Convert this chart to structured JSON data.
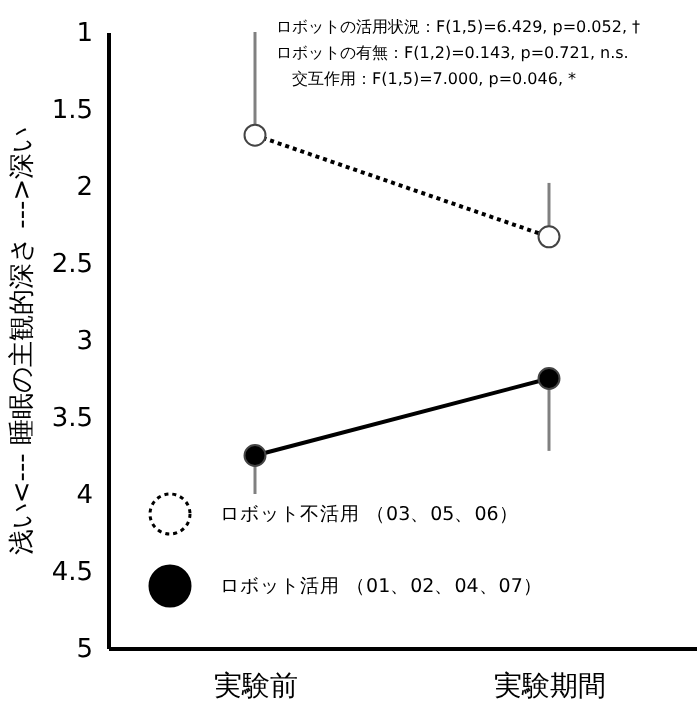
{
  "chart_data": {
    "type": "line",
    "ylabel": "浅い<--- 睡眠の主観的深さ --->深い",
    "categories": [
      "実験前",
      "実験期間"
    ],
    "series": [
      {
        "name": "ロボット不活用 （03、05、06）",
        "color": "#000000",
        "values": [
          1.67,
          2.33
        ],
        "errors": [
          [
            1.0,
            1.67
          ],
          [
            1.98,
            2.33
          ]
        ],
        "line_style": "dotted",
        "marker": "circle"
      },
      {
        "name": "ロボット活用 （01、02、04、07）",
        "color": "#000000",
        "values": [
          3.75,
          3.25
        ],
        "errors": [
          [
            3.75,
            4.0
          ],
          [
            3.25,
            3.72
          ]
        ],
        "line_style": "solid",
        "marker": "circle"
      }
    ],
    "ylim": [
      5,
      1
    ],
    "yticks": [
      1,
      1.5,
      2,
      2.5,
      3,
      3.5,
      4,
      4.5,
      5
    ],
    "annotations": [
      "ロボットの活用状況：F(1,5)=6.429, p=0.052, †",
      "ロボットの有無：F(1,2)=0.143, p=0.721, n.s.",
      "交互作用：F(1,5)=7.000, p=0.046, *"
    ],
    "grid": false,
    "legend": "bottom"
  }
}
